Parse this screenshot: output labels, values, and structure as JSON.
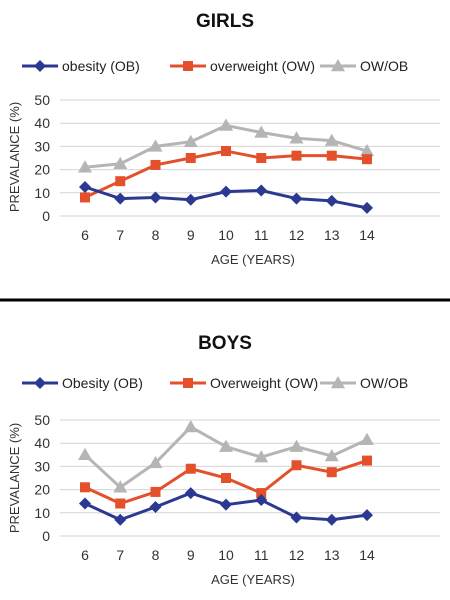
{
  "chart_data": [
    {
      "type": "line",
      "title": "GIRLS",
      "xlabel": "AGE (YEARS)",
      "ylabel": "PREVALANCE (%)",
      "ylim": [
        0,
        50
      ],
      "yticks": [
        0,
        10,
        20,
        30,
        40,
        50
      ],
      "grid": true,
      "legend_position": "top",
      "categories": [
        "6",
        "7",
        "8",
        "9",
        "10",
        "11",
        "12",
        "13",
        "14"
      ],
      "series": [
        {
          "name": "obesity (OB)",
          "color": "#2b3990",
          "marker": "diamond",
          "values": [
            12.5,
            7.5,
            8,
            7,
            10.5,
            11,
            7.5,
            6.5,
            3.5
          ]
        },
        {
          "name": "overweight (OW)",
          "color": "#e4502b",
          "marker": "square",
          "values": [
            8,
            15,
            22,
            25,
            28,
            25,
            26,
            26,
            24.5
          ]
        },
        {
          "name": "OW/OB",
          "color": "#b5b5b5",
          "marker": "triangle",
          "values": [
            21,
            22.5,
            30,
            32,
            39,
            36,
            33.5,
            32.5,
            28
          ]
        }
      ]
    },
    {
      "type": "line",
      "title": "BOYS",
      "xlabel": "AGE (YEARS)",
      "ylabel": "PREVALANCE (%)",
      "ylim": [
        0,
        50
      ],
      "yticks": [
        0,
        10,
        20,
        30,
        40,
        50
      ],
      "grid": true,
      "legend_position": "top",
      "categories": [
        "6",
        "7",
        "8",
        "9",
        "10",
        "11",
        "12",
        "13",
        "14"
      ],
      "series": [
        {
          "name": "Obesity (OB)",
          "color": "#2b3990",
          "marker": "diamond",
          "values": [
            14,
            7,
            12.5,
            18.5,
            13.5,
            15.5,
            8,
            7,
            9
          ]
        },
        {
          "name": "Overweight (OW)",
          "color": "#e4502b",
          "marker": "square",
          "values": [
            21,
            14,
            19,
            29,
            25,
            18.5,
            30.5,
            27.5,
            32.5
          ]
        },
        {
          "name": "OW/OB",
          "color": "#b5b5b5",
          "marker": "triangle",
          "values": [
            35,
            21,
            31.5,
            47,
            38.5,
            34,
            38.5,
            34.5,
            41.5
          ]
        }
      ]
    }
  ]
}
